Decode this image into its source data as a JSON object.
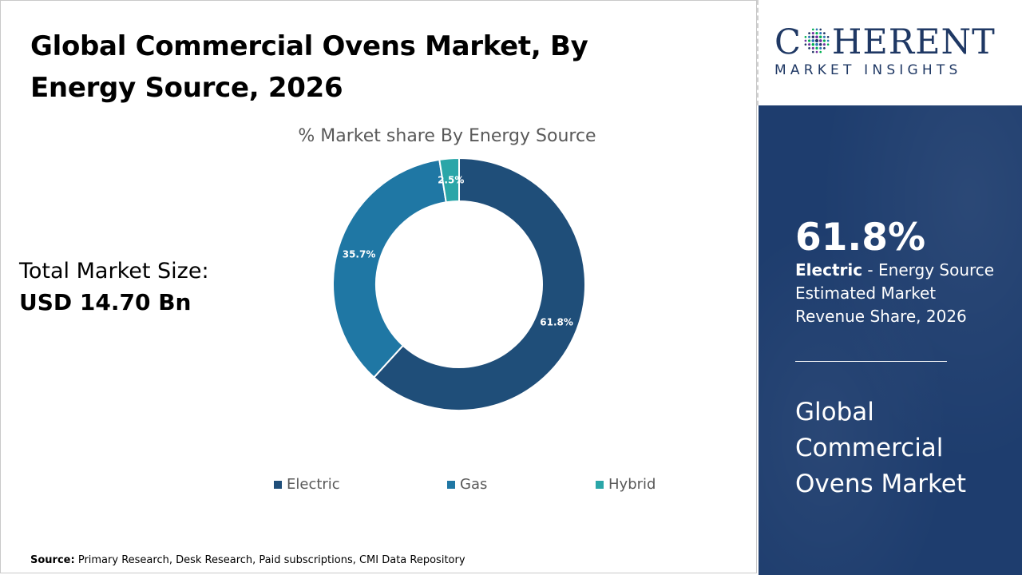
{
  "header": {
    "title": "Global Commercial Ovens Market, By Energy Source, 2026"
  },
  "total_market": {
    "label": "Total Market Size:",
    "value": "USD 14.70 Bn"
  },
  "chart_data": {
    "type": "pie",
    "title": "% Market share By Energy Source",
    "categories": [
      "Electric",
      "Gas",
      "Hybrid"
    ],
    "values": [
      61.8,
      35.7,
      2.5
    ],
    "value_labels": [
      "61.8%",
      "35.7%",
      "2.5%"
    ],
    "colors": [
      "#1f4e79",
      "#1f77a4",
      "#2aa6a8"
    ],
    "legend": "bottom",
    "donut": true
  },
  "source": {
    "label": "Source:",
    "text": "Primary Research, Desk Research, Paid subscriptions, CMI Data Repository"
  },
  "logo": {
    "word": "COHERENT",
    "word_pre": "C",
    "word_post": "HERENT",
    "subtitle": "MARKET INSIGHTS",
    "colors": [
      "#1f3864",
      "#7030a0",
      "#00b050",
      "#2e75b6"
    ]
  },
  "highlight": {
    "percentage": "61.8%",
    "segment": "Electric",
    "description": " - Energy Source Estimated Market Revenue Share, 2026",
    "market_name": "Global Commercial Ovens Market"
  },
  "theme": {
    "panel_color": "#1e3d6e"
  }
}
